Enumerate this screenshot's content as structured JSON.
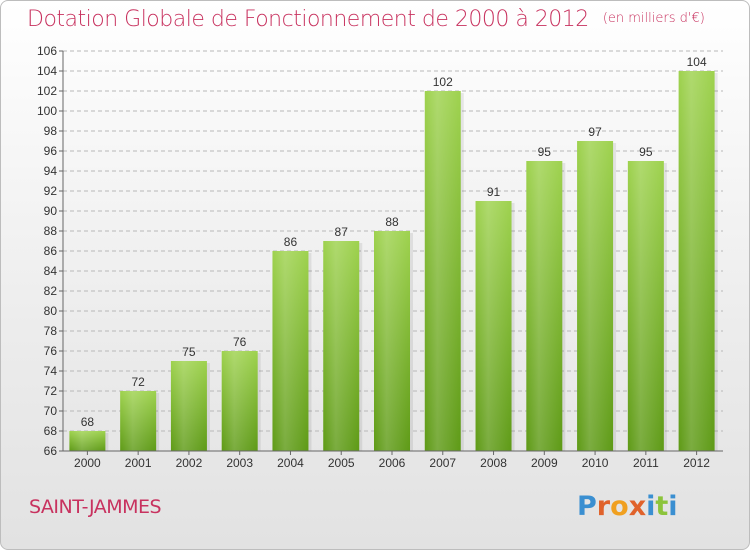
{
  "header": {
    "title": "Dotation Globale de Fonctionnement de 2000 à 2012",
    "unit": "(en milliers d'€)"
  },
  "footer": {
    "commune": "SAINT-JAMMES",
    "logo_letters": [
      "P",
      "r",
      "o",
      "x",
      "i",
      "t",
      "i"
    ]
  },
  "colors": {
    "title": "#c8325f",
    "bar_top": "#9ed24e",
    "bar_bottom": "#5e9a16"
  },
  "chart_data": {
    "type": "bar",
    "title": "Dotation Globale de Fonctionnement de 2000 à 2012",
    "subtitle": "(en milliers d'€)",
    "categories": [
      "2000",
      "2001",
      "2002",
      "2003",
      "2004",
      "2005",
      "2006",
      "2007",
      "2008",
      "2009",
      "2010",
      "2011",
      "2012"
    ],
    "values": [
      68,
      72,
      75,
      76,
      86,
      87,
      88,
      102,
      91,
      95,
      97,
      95,
      104
    ],
    "ylim": [
      66,
      106
    ],
    "yticks": [
      66,
      68,
      70,
      72,
      74,
      76,
      78,
      80,
      82,
      84,
      86,
      88,
      90,
      92,
      94,
      96,
      98,
      100,
      102,
      104,
      106
    ],
    "grid": true,
    "xlabel": "",
    "ylabel": ""
  }
}
